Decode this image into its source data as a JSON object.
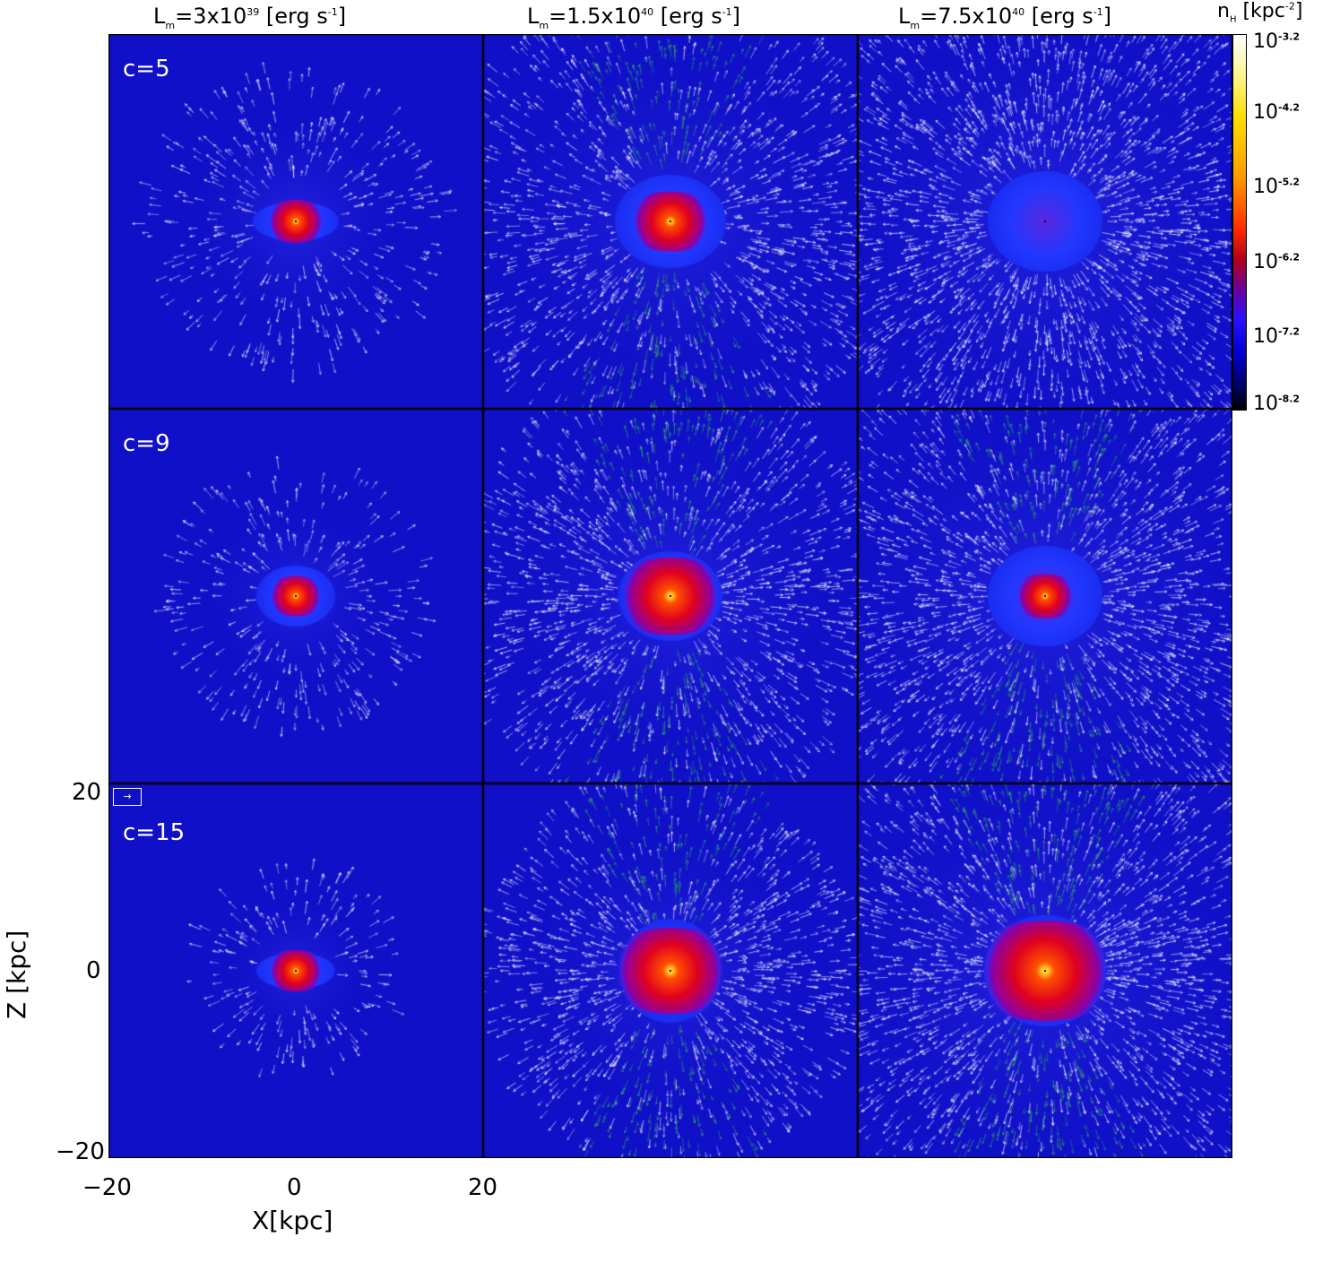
{
  "columns": [
    {
      "prefix": "L",
      "sub": "m",
      "mid": "=3x10",
      "exp": "39",
      "unit": " [erg s",
      "unit_exp": "-1",
      "close": "]"
    },
    {
      "prefix": "L",
      "sub": "m",
      "mid": "=1.5x10",
      "exp": "40",
      "unit": " [erg s",
      "unit_exp": "-1",
      "close": "]"
    },
    {
      "prefix": "L",
      "sub": "m",
      "mid": "=7.5x10",
      "exp": "40",
      "unit": " [erg s",
      "unit_exp": "-1",
      "close": "]"
    }
  ],
  "rows": [
    {
      "label": "c=5"
    },
    {
      "label": "c=9"
    },
    {
      "label": "c=15"
    }
  ],
  "colorbar": {
    "title_main": "n",
    "title_sub": "H",
    "title_unit": " [kpc",
    "title_unit_exp": "-2",
    "title_close": "]",
    "ticks": [
      {
        "base": "10",
        "exp": "-3.2"
      },
      {
        "base": "10",
        "exp": "-4.2"
      },
      {
        "base": "10",
        "exp": "-5.2"
      },
      {
        "base": "10",
        "exp": "-6.2"
      },
      {
        "base": "10",
        "exp": "-7.2"
      },
      {
        "base": "10",
        "exp": "-8.2"
      }
    ]
  },
  "x_axis": {
    "label": "X[kpc]",
    "ticks": [
      "−20",
      "0",
      "20"
    ]
  },
  "y_axis": {
    "label": "Z [kpc]",
    "ticks": [
      "20",
      "0",
      "−20"
    ]
  },
  "scale_arrow": "→",
  "colors": {
    "background": "#1010c8",
    "arrow_white": "#e8e8ff",
    "arrow_green": "#2f9f6a"
  }
}
